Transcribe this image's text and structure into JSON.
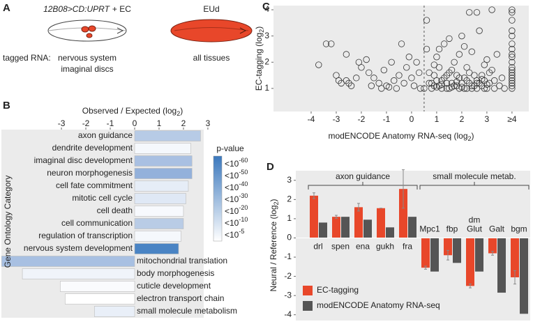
{
  "panel_labels": [
    "A",
    "B",
    "C",
    "D"
  ],
  "diagram": {
    "left_genotype": "12B08>CD:UPRT",
    "left_suffix": "+ EC",
    "right_label": "EUd",
    "row_label": "tagged RNA:",
    "left_tissue": [
      "nervous system",
      "imaginal discs"
    ],
    "right_tissue": "all tissues"
  },
  "chart_data": [
    {
      "type": "hbar",
      "xlabel": [
        "Observed / Expected (log",
        "2",
        ")"
      ],
      "ylabel": "Gene Ontology Category",
      "categories": [
        "axon guidance",
        "dendrite development",
        "imaginal disc development",
        "neuron morphogenesis",
        "cell fate commitment",
        "mitotic cell cycle",
        "cell death",
        "cell communication",
        "regulation of transcription",
        "nervous system development",
        "mitochondrial translation",
        "body morphogenesis",
        "cuticle development",
        "electron transport chain",
        "small molecule metabolism"
      ],
      "values": [
        2.7,
        2.3,
        2.35,
        2.35,
        2.2,
        2.1,
        2.0,
        2.0,
        1.9,
        1.8,
        -5.45,
        -4.6,
        -3.05,
        -2.85,
        -1.65
      ],
      "colors": [
        "#b7cbe6",
        "#f5f8fc",
        "#a9c0e2",
        "#93b1db",
        "#e6edf7",
        "#dfe8f5",
        "#f7f9fd",
        "#b9cce6",
        "#f5f8fc",
        "#4a84c4",
        "#a8c0e2",
        "#f0f4fa",
        "#fafbfd",
        "#ffffff",
        "#e9eff8"
      ],
      "xlim": [
        -5.46,
        2.83
      ],
      "xticks": [
        -3,
        -2,
        -1,
        0,
        1,
        2,
        3
      ],
      "legend": {
        "title": "p-value",
        "base": "<10",
        "exponents": [
          "-60",
          "-50",
          "-40",
          "-30",
          "-20",
          "-10",
          "-5"
        ],
        "colors": [
          "#3b78bd",
          "#ffffff"
        ]
      }
    },
    {
      "type": "scatter",
      "xlabel": [
        "modENCODE Anatomy RNA-seq (log",
        "2",
        ")"
      ],
      "ylabel": [
        "EC-tagging (log",
        "2",
        ")"
      ],
      "x": [
        -3.4,
        -3.2,
        -3.7,
        -3.0,
        -2.9,
        -2.6,
        -2.5,
        -2.4,
        -2.6,
        -2.1,
        -2.0,
        -1.8,
        -1.7,
        -1.5,
        -1.3,
        -1.2,
        -1.0,
        -0.9,
        -0.8,
        -0.7,
        -0.5,
        -0.4,
        -0.3,
        -0.2,
        -0.1,
        0.0,
        0.1,
        0.2,
        0.3,
        0.35,
        -1.6,
        -2.2,
        -2.8,
        -1.1,
        -0.6,
        0.6,
        0.6,
        0.7,
        0.8,
        0.9,
        1.0,
        1.1,
        1.2,
        1.3,
        1.4,
        1.5,
        1.6,
        1.7,
        1.8,
        1.9,
        2.0,
        2.1,
        2.2,
        2.3,
        2.4,
        2.5,
        2.6,
        2.7,
        2.8,
        2.9,
        3.0,
        3.1,
        3.2,
        3.3,
        3.4,
        3.5,
        3.6,
        3.7,
        3.3,
        0.5,
        0.7,
        0.9,
        1.0,
        1.1,
        1.2,
        1.3,
        1.4,
        1.5,
        1.6,
        1.7,
        1.8,
        1.9,
        2.0,
        2.1,
        2.2,
        2.3,
        2.4,
        2.5,
        2.6,
        2.7,
        2.8,
        2.9,
        3.0,
        3.1,
        0.8,
        1.0,
        1.2,
        1.4,
        1.6,
        1.8,
        2.0,
        2.2,
        2.4,
        2.6,
        2.8,
        3.0,
        1.1,
        1.5,
        2.1,
        2.9,
        1.9,
        0.9,
        2.6,
        3.2,
        2.3,
        4,
        4,
        4,
        4,
        4,
        4,
        4,
        4,
        4,
        4,
        4,
        4,
        4,
        4,
        4,
        4,
        4,
        4,
        4
      ],
      "y": [
        2.7,
        2.7,
        1.9,
        1.5,
        1.3,
        1.3,
        1.2,
        1.1,
        2.3,
        2.0,
        1.8,
        2.1,
        1.6,
        1.4,
        1.2,
        1.0,
        1.1,
        1.05,
        2.0,
        1.3,
        1.5,
        2.7,
        1.2,
        1.8,
        2.2,
        1.4,
        1.1,
        2.0,
        1.6,
        1.0,
        1.1,
        1.4,
        1.2,
        1.7,
        1.0,
        3.6,
        2.5,
        1.2,
        1.0,
        1.5,
        2.2,
        1.1,
        1.3,
        2.7,
        1.0,
        1.6,
        1.2,
        2.0,
        1.1,
        1.4,
        3.0,
        1.0,
        1.8,
        1.2,
        2.4,
        1.1,
        1.3,
        3.2,
        1.5,
        1.0,
        2.1,
        1.2,
        1.7,
        1.0,
        2.3,
        1.1,
        1.4,
        1.0,
        1.3,
        1.0,
        1.6,
        1.1,
        1.3,
        1.8,
        1.0,
        1.4,
        1.2,
        1.0,
        1.7,
        1.1,
        1.5,
        1.0,
        1.2,
        1.4,
        1.0,
        1.6,
        1.1,
        1.5,
        1.0,
        1.2,
        1.1,
        1.3,
        1.0,
        1.6,
        1.2,
        1.05,
        1.15,
        1.5,
        1.05,
        1.25,
        1.05,
        1.3,
        1.0,
        1.2,
        1.35,
        1.15,
        2.5,
        2.9,
        2.6,
        1.9,
        2.3,
        1.9,
        3.9,
        4.0,
        3.9,
        4.0,
        3.6,
        3.2,
        3.0,
        2.7,
        2.5,
        2.3,
        2.2,
        2.0,
        1.8,
        1.7,
        1.6,
        1.5,
        1.4,
        1.3,
        1.2,
        1.1,
        1.0,
        3.9
      ],
      "xlim": [
        -5.5,
        4.67
      ],
      "ylim": [
        0.12,
        4.16
      ],
      "xticks": [
        -4,
        -3,
        -2,
        -1,
        0,
        1,
        2,
        3,
        {
          "value": 4,
          "label": "≥4"
        }
      ],
      "yticks": [
        1,
        2,
        3,
        4
      ],
      "vline": 0.5,
      "marker_color": "#333333"
    },
    {
      "type": "grouped-bar",
      "ylabel": [
        "Neural / Reference (log",
        "2",
        ")"
      ],
      "groups": [
        {
          "name": "axon guidance",
          "categories": [
            "drl",
            "spen",
            "ena",
            "gukh",
            "fra"
          ]
        },
        {
          "name": "small molecule metab.",
          "categories": [
            "Mpc1",
            "fbp",
            "dm Glut",
            "Galt",
            "bgm"
          ]
        }
      ],
      "series": [
        {
          "name": "EC-tagging",
          "color": "#e8472a",
          "values": [
            2.2,
            1.1,
            1.6,
            1.55,
            2.55,
            -1.55,
            -0.9,
            -2.5,
            -0.8,
            -2.05
          ],
          "errors": [
            0.15,
            0.08,
            0.2,
            0,
            1.0,
            0.08,
            0.25,
            0.1,
            0.1,
            0.35
          ]
        },
        {
          "name": "modENCODE Anatomy RNA-seq",
          "color": "#555555",
          "values": [
            0.8,
            1.1,
            0.95,
            0.55,
            1.1,
            -1.75,
            -1.3,
            -1.75,
            -2.85,
            -3.95
          ]
        }
      ],
      "ylim": [
        -4.3,
        3.5
      ],
      "yticks": [
        -4,
        -3,
        -2,
        -1,
        0,
        1,
        2,
        3
      ]
    }
  ]
}
